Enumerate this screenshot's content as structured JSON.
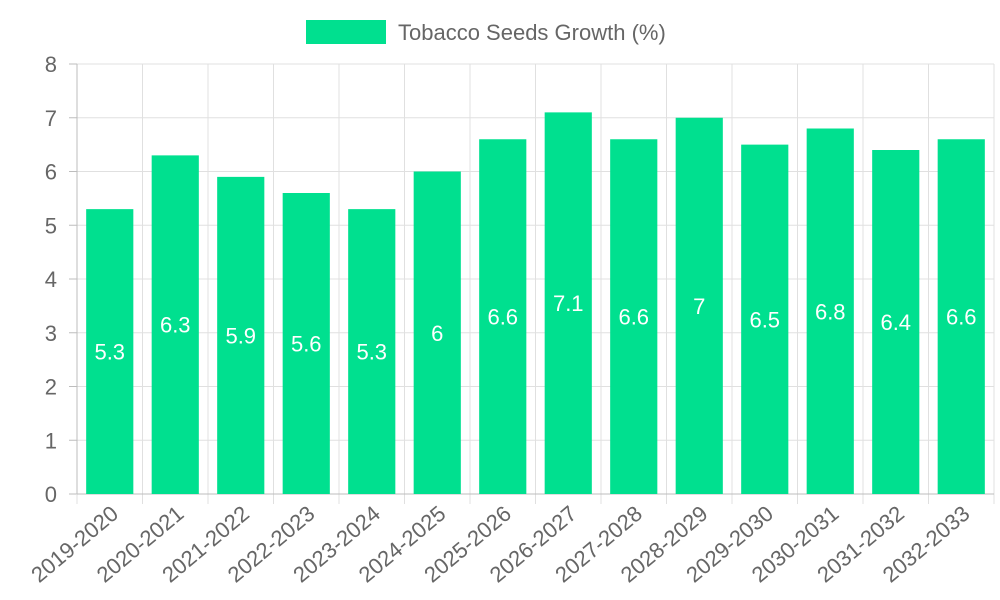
{
  "chart_data": {
    "type": "bar",
    "categories": [
      "2019-2020",
      "2020-2021",
      "2021-2022",
      "2022-2023",
      "2023-2024",
      "2024-2025",
      "2025-2026",
      "2026-2027",
      "2027-2028",
      "2028-2029",
      "2029-2030",
      "2030-2031",
      "2031-2032",
      "2032-2033"
    ],
    "series": [
      {
        "name": "Tobacco Seeds Growth (%)",
        "values": [
          5.3,
          6.3,
          5.9,
          5.6,
          5.3,
          6,
          6.6,
          7.1,
          6.6,
          7,
          6.5,
          6.8,
          6.4,
          6.6
        ]
      }
    ],
    "ylim": [
      0,
      8
    ],
    "yticks": [
      "0",
      "1",
      "2",
      "3",
      "4",
      "5",
      "6",
      "7",
      "8"
    ],
    "grid": true,
    "legend": "top-center"
  },
  "colors": {
    "bar": "#00e08f",
    "grid": "#e0e0e0",
    "axis": "#bdbdbd",
    "text": "#666666",
    "label": "#ffffff"
  }
}
